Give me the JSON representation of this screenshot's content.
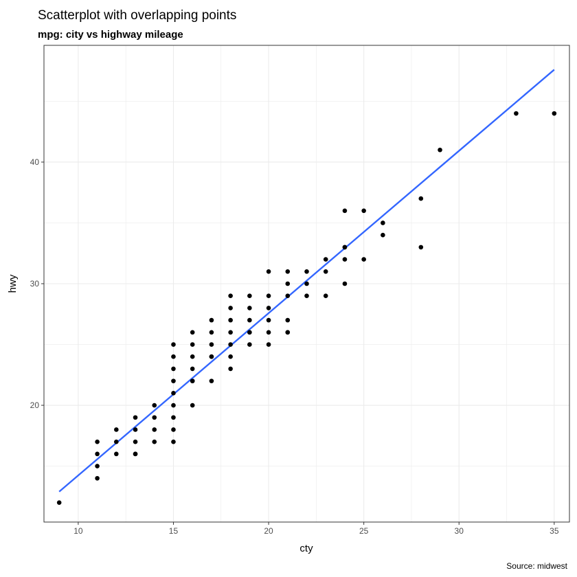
{
  "chart_data": {
    "type": "scatter",
    "title": "Scatterplot with overlapping points",
    "subtitle": "mpg: city vs highway mileage",
    "xlabel": "cty",
    "ylabel": "hwy",
    "caption": "Source: midwest",
    "xlim": [
      8.2,
      35.8
    ],
    "ylim": [
      10.4,
      49.6
    ],
    "x_ticks": [
      10,
      15,
      20,
      25,
      30,
      35
    ],
    "y_ticks": [
      20,
      30,
      40
    ],
    "grid": true,
    "colors": {
      "points": "#000000",
      "fit_line": "#3366ff",
      "grid": "#ebebeb",
      "panel_border": "#333333"
    },
    "series": [
      {
        "type": "points",
        "x": [
          9,
          11,
          11,
          11,
          11,
          12,
          12,
          12,
          13,
          13,
          13,
          13,
          13,
          14,
          14,
          14,
          14,
          15,
          15,
          15,
          15,
          15,
          15,
          15,
          15,
          15,
          16,
          16,
          16,
          16,
          16,
          16,
          16,
          17,
          17,
          17,
          17,
          17,
          17,
          18,
          18,
          18,
          18,
          18,
          18,
          18,
          19,
          19,
          19,
          19,
          19,
          19,
          20,
          20,
          20,
          20,
          20,
          20,
          21,
          21,
          21,
          21,
          21,
          21,
          22,
          22,
          22,
          23,
          23,
          23,
          24,
          24,
          24,
          24,
          24,
          25,
          25,
          26,
          26,
          28,
          28,
          29,
          33,
          35
        ],
        "y": [
          12,
          14,
          15,
          16,
          17,
          16,
          17,
          18,
          16,
          17,
          18,
          19,
          16,
          17,
          18,
          19,
          20,
          17,
          18,
          19,
          20,
          21,
          22,
          23,
          24,
          25,
          20,
          22,
          23,
          24,
          25,
          26,
          22,
          22,
          24,
          25,
          26,
          27,
          24,
          23,
          24,
          25,
          26,
          27,
          28,
          29,
          25,
          26,
          27,
          28,
          29,
          26,
          25,
          26,
          27,
          28,
          29,
          31,
          26,
          27,
          29,
          30,
          31,
          26,
          29,
          30,
          31,
          29,
          31,
          32,
          30,
          32,
          33,
          36,
          33,
          32,
          36,
          34,
          35,
          33,
          37,
          41,
          44,
          44
        ]
      },
      {
        "type": "lm_fit",
        "x": [
          9,
          35
        ],
        "y": [
          12.9,
          47.6
        ]
      }
    ]
  }
}
